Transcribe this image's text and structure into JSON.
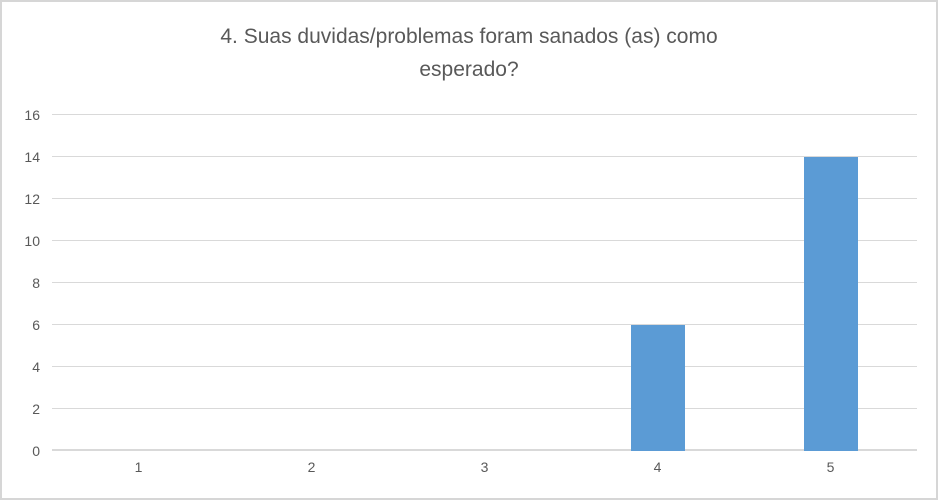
{
  "title_lines": [
    "4. Suas duvidas/problemas foram sanados (as) como",
    "esperado?"
  ],
  "colors": {
    "bar": "#5B9BD5",
    "gridline": "#D9D9D9",
    "axis_line": "#D9D9D9",
    "text": "#595959",
    "frame_border": "#D6D6D6",
    "background": "#FFFFFF"
  },
  "chart_data": {
    "type": "bar",
    "title": "4. Suas duvidas/problemas foram sanados (as) como esperado?",
    "categories": [
      "1",
      "2",
      "3",
      "4",
      "5"
    ],
    "values": [
      0,
      0,
      0,
      6,
      14
    ],
    "xlabel": "",
    "ylabel": "",
    "ylim": [
      0,
      16
    ],
    "ytick_step": 2,
    "yticks": [
      0,
      2,
      4,
      6,
      8,
      10,
      12,
      14,
      16
    ],
    "grid": true,
    "legend": false
  }
}
